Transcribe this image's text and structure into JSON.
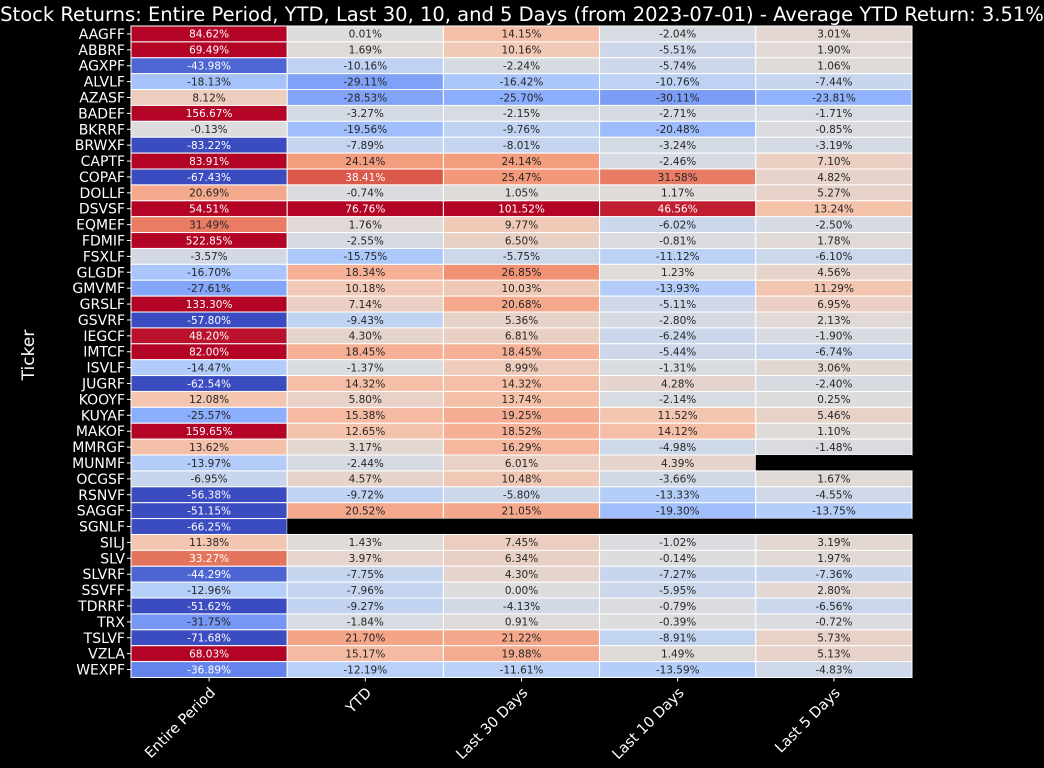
{
  "chart_data": {
    "type": "heatmap",
    "title": "Stock Returns: Entire Period, YTD, Last 30, 10, and 5 Days (from 2023-07-01) - Average YTD Return: 3.51%",
    "ylabel": "Ticker",
    "xlabel": "",
    "columns": [
      "Entire Period",
      "YTD",
      "Last 30 Days",
      "Last 10 Days",
      "Last 5 Days"
    ],
    "rows": [
      "AAGFF",
      "ABBRF",
      "AGXPF",
      "ALVLF",
      "AZASF",
      "BADEF",
      "BKRRF",
      "BRWXF",
      "CAPTF",
      "COPAF",
      "DOLLF",
      "DSVSF",
      "EQMEF",
      "FDMIF",
      "FSXLF",
      "GLGDF",
      "GMVMF",
      "GRSLF",
      "GSVRF",
      "IEGCF",
      "IMTCF",
      "ISVLF",
      "JUGRF",
      "KOOYF",
      "KUYAF",
      "MAKOF",
      "MMRGF",
      "MUNMF",
      "OCGSF",
      "RSNVF",
      "SAGGF",
      "SGNLF",
      "SILJ",
      "SLV",
      "SLVRF",
      "SSVFF",
      "TDRRF",
      "TRX",
      "TSLVF",
      "VZLA",
      "WEXPF"
    ],
    "values": [
      [
        84.62,
        0.01,
        14.15,
        -2.04,
        3.01
      ],
      [
        69.49,
        1.69,
        10.16,
        -5.51,
        1.9
      ],
      [
        -43.98,
        -10.16,
        -2.24,
        -5.74,
        1.06
      ],
      [
        -18.13,
        -29.11,
        -16.42,
        -10.76,
        -7.44
      ],
      [
        8.12,
        -28.53,
        -25.7,
        -30.11,
        -23.81
      ],
      [
        156.67,
        -3.27,
        -2.15,
        -2.71,
        -1.71
      ],
      [
        -0.13,
        -19.56,
        -9.76,
        -20.48,
        -0.85
      ],
      [
        -83.22,
        -7.89,
        -8.01,
        -3.24,
        -3.19
      ],
      [
        83.91,
        24.14,
        24.14,
        -2.46,
        7.1
      ],
      [
        -67.43,
        38.41,
        25.47,
        31.58,
        4.82
      ],
      [
        20.69,
        -0.74,
        1.05,
        1.17,
        5.27
      ],
      [
        54.51,
        76.76,
        101.52,
        46.56,
        13.24
      ],
      [
        31.49,
        1.76,
        9.77,
        -6.02,
        -2.5
      ],
      [
        522.85,
        -2.55,
        6.5,
        -0.81,
        1.78
      ],
      [
        -3.57,
        -15.75,
        -5.75,
        -11.12,
        -6.1
      ],
      [
        -16.7,
        18.34,
        26.85,
        1.23,
        4.56
      ],
      [
        -27.61,
        10.18,
        10.03,
        -13.93,
        11.29
      ],
      [
        133.3,
        7.14,
        20.68,
        -5.11,
        6.95
      ],
      [
        -57.8,
        -9.43,
        5.36,
        -2.8,
        2.13
      ],
      [
        48.2,
        4.3,
        6.81,
        -6.24,
        -1.9
      ],
      [
        82.0,
        18.45,
        18.45,
        -5.44,
        -6.74
      ],
      [
        -14.47,
        -1.37,
        8.99,
        -1.31,
        3.06
      ],
      [
        -62.54,
        14.32,
        14.32,
        4.28,
        -2.4
      ],
      [
        12.08,
        5.8,
        13.74,
        -2.14,
        0.25
      ],
      [
        -25.57,
        15.38,
        19.25,
        11.52,
        5.46
      ],
      [
        159.65,
        12.65,
        18.52,
        14.12,
        1.1
      ],
      [
        13.62,
        3.17,
        16.29,
        -4.98,
        -1.48
      ],
      [
        -13.97,
        -2.44,
        6.01,
        4.39,
        null
      ],
      [
        -6.95,
        4.57,
        10.48,
        -3.66,
        1.67
      ],
      [
        -56.38,
        -9.72,
        -5.8,
        -13.33,
        -4.55
      ],
      [
        -51.15,
        20.52,
        21.05,
        -19.3,
        -13.75
      ],
      [
        -66.25,
        null,
        null,
        null,
        null
      ],
      [
        11.38,
        1.43,
        7.45,
        -1.02,
        3.19
      ],
      [
        33.27,
        3.97,
        6.34,
        -0.14,
        1.97
      ],
      [
        -44.29,
        -7.75,
        4.3,
        -7.27,
        -7.36
      ],
      [
        -12.96,
        -7.96,
        -0.0,
        -5.95,
        2.8
      ],
      [
        -51.62,
        -9.27,
        -4.13,
        -0.79,
        -6.56
      ],
      [
        -31.75,
        -1.84,
        0.91,
        -0.39,
        -0.72
      ],
      [
        -71.68,
        21.7,
        21.22,
        -8.91,
        5.73
      ],
      [
        68.03,
        15.17,
        19.88,
        1.49,
        5.13
      ],
      [
        -36.89,
        -12.19,
        -11.61,
        -13.59,
        -4.83
      ]
    ],
    "value_format": "percent, 2 decimals",
    "colormap": "coolwarm",
    "color_range": [
      -50,
      50
    ],
    "missing_color": "#000000",
    "cell_border_color": "#ffffff",
    "legend": "none",
    "grid": false
  }
}
